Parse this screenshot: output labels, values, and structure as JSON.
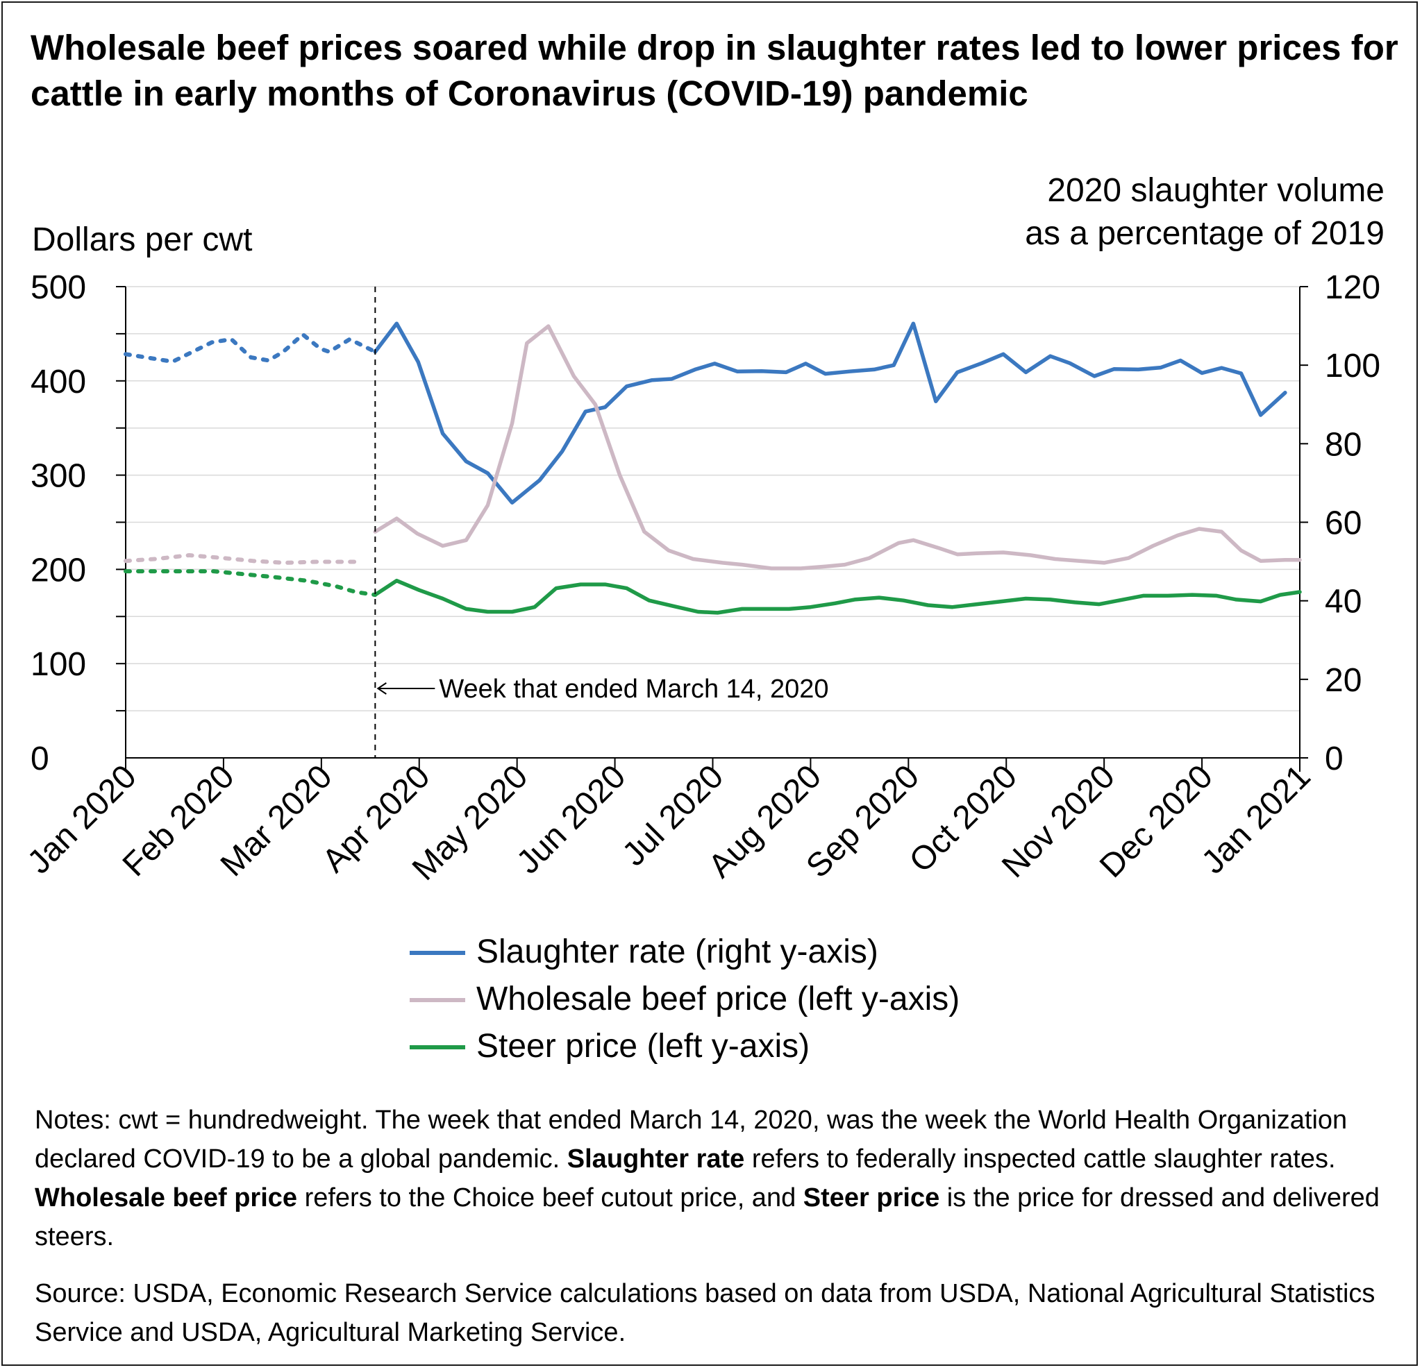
{
  "title": "Wholesale beef prices soared while drop in slaughter rates led to lower prices for cattle in early months of Coronavirus (COVID-19) pandemic",
  "left_axis_title": "Dollars per cwt",
  "right_axis_title_line1": "2020 slaughter volume",
  "right_axis_title_line2": "as a percentage of 2019",
  "annotation": "Week that ended March 14, 2020",
  "legend": [
    {
      "label": "Slaughter rate (right y-axis)",
      "color": "#3b78c0"
    },
    {
      "label": "Wholesale beef price (left y-axis)",
      "color": "#cdb8c4"
    },
    {
      "label": "Steer price (left y-axis)",
      "color": "#1f9a48"
    }
  ],
  "notes": {
    "p1": "Notes: cwt = hundredweight. The week that ended March 14, 2020, was the week the World Health Organization declared COVID-19 to be a global pandemic. ",
    "b1": "Slaughter rate",
    "p2": " refers to federally inspected cattle slaughter rates. ",
    "b2": "Wholesale beef price",
    "p3": " refers to the Choice beef cutout price, and ",
    "b3": "Steer price",
    "p4": " is the price for dressed and delivered steers."
  },
  "source": "Source: USDA, Economic Research Service calculations based on data from USDA, National Agricultural Statistics Service and USDA, Agricultural Marketing Service.",
  "chart_data": {
    "type": "line",
    "x_labels": [
      "Jan 2020",
      "Feb 2020",
      "Mar 2020",
      "Apr 2020",
      "May 2020",
      "Jun 2020",
      "Jul 2020",
      "Aug 2020",
      "Sep 2020",
      "Oct 2020",
      "Nov 2020",
      "Dec 2020",
      "Jan 2021"
    ],
    "x_unit": "months since Jan 2020",
    "y_left": {
      "ticks": [
        0,
        100,
        200,
        300,
        400,
        500
      ],
      "range": [
        0,
        500
      ]
    },
    "y_right": {
      "ticks": [
        0,
        20,
        40,
        60,
        80,
        100,
        120
      ],
      "range": [
        0,
        120
      ]
    },
    "grid": true,
    "marker_line_x": 2.55,
    "series": [
      {
        "name": "Slaughter rate (right y-axis)",
        "axis": "right",
        "color": "#3b78c0",
        "dotted_until": 2.55,
        "points": [
          [
            0,
            102.8
          ],
          [
            0.48,
            100.9
          ],
          [
            0.88,
            105.8
          ],
          [
            1.08,
            106.6
          ],
          [
            1.28,
            102
          ],
          [
            1.46,
            101.2
          ],
          [
            1.61,
            103.4
          ],
          [
            1.81,
            107.8
          ],
          [
            1.99,
            104.2
          ],
          [
            2.08,
            103.4
          ],
          [
            2.29,
            106.6
          ],
          [
            2.55,
            103.4
          ],
          [
            2.77,
            110.6
          ],
          [
            2.99,
            100.8
          ],
          [
            3.24,
            82.6
          ],
          [
            3.48,
            75.5
          ],
          [
            3.7,
            72.5
          ],
          [
            3.95,
            65
          ],
          [
            4.23,
            70.7
          ],
          [
            4.46,
            78
          ],
          [
            4.7,
            88.2
          ],
          [
            4.9,
            89.3
          ],
          [
            5.12,
            94.6
          ],
          [
            5.38,
            96.2
          ],
          [
            5.58,
            96.5
          ],
          [
            5.82,
            98.9
          ],
          [
            6.02,
            100.4
          ],
          [
            6.25,
            98.4
          ],
          [
            6.5,
            98.5
          ],
          [
            6.75,
            98.2
          ],
          [
            6.95,
            100.4
          ],
          [
            7.15,
            97.8
          ],
          [
            7.4,
            98.4
          ],
          [
            7.65,
            98.9
          ],
          [
            7.85,
            100
          ],
          [
            8.05,
            110.6
          ],
          [
            8.28,
            90.8
          ],
          [
            8.5,
            98.2
          ],
          [
            8.75,
            100.5
          ],
          [
            8.97,
            102.8
          ],
          [
            9.2,
            98.2
          ],
          [
            9.45,
            102.3
          ],
          [
            9.65,
            100.5
          ],
          [
            9.9,
            97.2
          ],
          [
            10.1,
            99
          ],
          [
            10.35,
            98.9
          ],
          [
            10.58,
            99.4
          ],
          [
            10.78,
            101.2
          ],
          [
            11,
            98
          ],
          [
            11.2,
            99.3
          ],
          [
            11.4,
            97.9
          ],
          [
            11.6,
            87.3
          ],
          [
            11.85,
            93
          ]
        ]
      },
      {
        "name": "Wholesale beef price (left y-axis)",
        "axis": "left",
        "color": "#cdb8c4",
        "dotted_until": 2.4,
        "points": [
          [
            0,
            209
          ],
          [
            0.3,
            211
          ],
          [
            0.65,
            215
          ],
          [
            1.0,
            212
          ],
          [
            1.3,
            209
          ],
          [
            1.62,
            207
          ],
          [
            1.95,
            208
          ],
          [
            2.35,
            208
          ],
          [
            2.55,
            240
          ],
          [
            2.77,
            254
          ],
          [
            2.98,
            238
          ],
          [
            3.24,
            225
          ],
          [
            3.48,
            231
          ],
          [
            3.7,
            268
          ],
          [
            3.95,
            355
          ],
          [
            4.1,
            440
          ],
          [
            4.32,
            458
          ],
          [
            4.58,
            405
          ],
          [
            4.8,
            375
          ],
          [
            5.05,
            300
          ],
          [
            5.3,
            240
          ],
          [
            5.55,
            220
          ],
          [
            5.8,
            211
          ],
          [
            6.1,
            207
          ],
          [
            6.3,
            205
          ],
          [
            6.6,
            201
          ],
          [
            6.9,
            201
          ],
          [
            7.15,
            203
          ],
          [
            7.35,
            205
          ],
          [
            7.6,
            212
          ],
          [
            7.9,
            228
          ],
          [
            8.05,
            231
          ],
          [
            8.3,
            223
          ],
          [
            8.5,
            216
          ],
          [
            8.7,
            217
          ],
          [
            8.97,
            218
          ],
          [
            9.25,
            215
          ],
          [
            9.5,
            211
          ],
          [
            9.75,
            209
          ],
          [
            10.0,
            207
          ],
          [
            10.25,
            212
          ],
          [
            10.5,
            225
          ],
          [
            10.75,
            236
          ],
          [
            10.97,
            243
          ],
          [
            11.2,
            240
          ],
          [
            11.4,
            220
          ],
          [
            11.6,
            209
          ],
          [
            11.85,
            210
          ],
          [
            12.0,
            210
          ]
        ]
      },
      {
        "name": "Steer price (left y-axis)",
        "axis": "left",
        "color": "#1f9a48",
        "dotted_until": 2.55,
        "points": [
          [
            0,
            198
          ],
          [
            0.5,
            198
          ],
          [
            0.9,
            198
          ],
          [
            1.5,
            192
          ],
          [
            1.85,
            188
          ],
          [
            2.15,
            182
          ],
          [
            2.35,
            176
          ],
          [
            2.55,
            173
          ],
          [
            2.77,
            188
          ],
          [
            3.0,
            178
          ],
          [
            3.24,
            169
          ],
          [
            3.48,
            158
          ],
          [
            3.7,
            155
          ],
          [
            3.95,
            155
          ],
          [
            4.18,
            160
          ],
          [
            4.4,
            180
          ],
          [
            4.65,
            184
          ],
          [
            4.9,
            184
          ],
          [
            5.12,
            180
          ],
          [
            5.35,
            167
          ],
          [
            5.6,
            161
          ],
          [
            5.85,
            155
          ],
          [
            6.05,
            154
          ],
          [
            6.3,
            158
          ],
          [
            6.55,
            158
          ],
          [
            6.78,
            158
          ],
          [
            7.0,
            160
          ],
          [
            7.25,
            164
          ],
          [
            7.45,
            168
          ],
          [
            7.7,
            170
          ],
          [
            7.95,
            167
          ],
          [
            8.2,
            162
          ],
          [
            8.45,
            160
          ],
          [
            8.7,
            163
          ],
          [
            8.95,
            166
          ],
          [
            9.2,
            169
          ],
          [
            9.45,
            168
          ],
          [
            9.7,
            165
          ],
          [
            9.95,
            163
          ],
          [
            10.15,
            167
          ],
          [
            10.4,
            172
          ],
          [
            10.65,
            172
          ],
          [
            10.9,
            173
          ],
          [
            11.15,
            172
          ],
          [
            11.35,
            168
          ],
          [
            11.6,
            166
          ],
          [
            11.8,
            173
          ],
          [
            12.0,
            176
          ]
        ]
      }
    ]
  }
}
